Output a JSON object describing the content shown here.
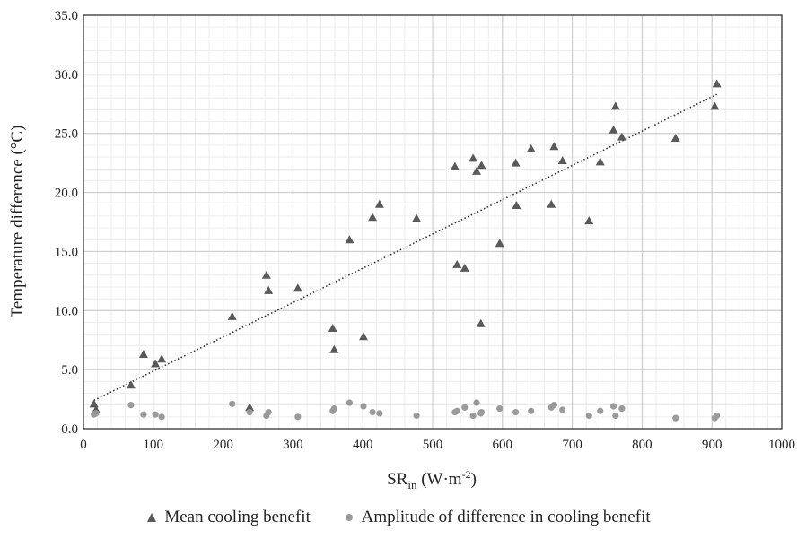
{
  "chart_data": {
    "type": "scatter",
    "xlabel_main": "SR",
    "xlabel_sub": "in",
    "xlabel_unit": " (W·m",
    "xlabel_sup": "-2",
    "xlabel_close": ")",
    "ylabel": "Temperature difference (°C)",
    "xlim": [
      0,
      1000
    ],
    "ylim": [
      0,
      35
    ],
    "x_ticks": [
      "0",
      "100",
      "200",
      "300",
      "400",
      "500",
      "600",
      "700",
      "800",
      "900",
      "1000"
    ],
    "y_ticks": [
      "0.0",
      "5.0",
      "10.0",
      "15.0",
      "20.0",
      "25.0",
      "30.0",
      "35.0"
    ],
    "grid": true,
    "legend_position": "bottom",
    "series": [
      {
        "name": "Mean cooling benefit",
        "marker": "triangle",
        "color": "#595959",
        "points": [
          [
            15,
            2.1
          ],
          [
            18,
            1.6
          ],
          [
            68,
            3.7
          ],
          [
            86,
            6.3
          ],
          [
            103,
            5.5
          ],
          [
            112,
            5.9
          ],
          [
            213,
            9.5
          ],
          [
            238,
            1.8
          ],
          [
            262,
            13.0
          ],
          [
            265,
            11.7
          ],
          [
            307,
            11.9
          ],
          [
            357,
            8.5
          ],
          [
            359,
            6.7
          ],
          [
            381,
            16.0
          ],
          [
            401,
            7.8
          ],
          [
            414,
            17.9
          ],
          [
            424,
            19.0
          ],
          [
            477,
            17.8
          ],
          [
            532,
            22.2
          ],
          [
            535,
            13.9
          ],
          [
            546,
            13.6
          ],
          [
            558,
            22.9
          ],
          [
            563,
            21.8
          ],
          [
            569,
            8.9
          ],
          [
            570,
            22.3
          ],
          [
            596,
            15.7
          ],
          [
            619,
            22.5
          ],
          [
            620,
            18.9
          ],
          [
            641,
            23.7
          ],
          [
            670,
            19.0
          ],
          [
            674,
            23.9
          ],
          [
            686,
            22.7
          ],
          [
            724,
            17.6
          ],
          [
            740,
            22.6
          ],
          [
            759,
            25.3
          ],
          [
            762,
            27.3
          ],
          [
            771,
            24.7
          ],
          [
            848,
            24.6
          ],
          [
            904,
            27.3
          ],
          [
            907,
            29.2
          ]
        ]
      },
      {
        "name": "Amplitude of difference in cooling benefit",
        "marker": "circle",
        "color": "#9a9a9a",
        "points": [
          [
            15,
            1.2
          ],
          [
            18,
            1.3
          ],
          [
            68,
            2.0
          ],
          [
            86,
            1.2
          ],
          [
            103,
            1.2
          ],
          [
            112,
            1.0
          ],
          [
            213,
            2.1
          ],
          [
            238,
            1.4
          ],
          [
            262,
            1.1
          ],
          [
            265,
            1.4
          ],
          [
            307,
            1.0
          ],
          [
            357,
            1.5
          ],
          [
            359,
            1.7
          ],
          [
            381,
            2.2
          ],
          [
            401,
            1.9
          ],
          [
            414,
            1.4
          ],
          [
            424,
            1.3
          ],
          [
            477,
            1.1
          ],
          [
            532,
            1.4
          ],
          [
            535,
            1.5
          ],
          [
            546,
            1.8
          ],
          [
            558,
            1.1
          ],
          [
            563,
            2.2
          ],
          [
            569,
            1.3
          ],
          [
            570,
            1.4
          ],
          [
            596,
            1.7
          ],
          [
            619,
            1.4
          ],
          [
            641,
            1.5
          ],
          [
            670,
            1.8
          ],
          [
            674,
            2.0
          ],
          [
            686,
            1.6
          ],
          [
            724,
            1.1
          ],
          [
            740,
            1.5
          ],
          [
            759,
            1.9
          ],
          [
            762,
            1.1
          ],
          [
            771,
            1.7
          ],
          [
            848,
            0.9
          ],
          [
            904,
            0.9
          ],
          [
            907,
            1.1
          ]
        ]
      }
    ],
    "trendline": {
      "series": "Mean cooling benefit",
      "style": "dotted",
      "color": "#333333",
      "x": [
        15,
        907
      ],
      "y": [
        2.4,
        28.3
      ]
    }
  }
}
